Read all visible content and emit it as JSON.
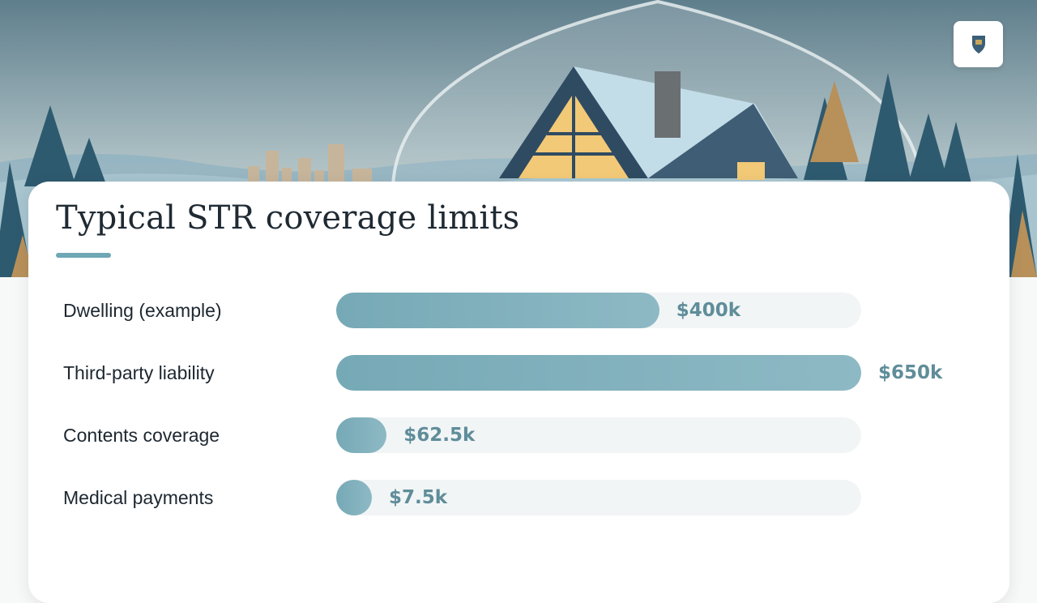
{
  "chart_data": {
    "type": "bar",
    "orientation": "horizontal",
    "title": "Typical STR coverage limits",
    "categories": [
      "Dwelling (example)",
      "Third-party liability",
      "Contents coverage",
      "Medical payments"
    ],
    "values": [
      400,
      650,
      62.5,
      7.5
    ],
    "value_labels": [
      "$400k",
      "$650k",
      "$62.5k",
      "$7.5k"
    ],
    "xlim": [
      0,
      650
    ],
    "grid": false,
    "legend": "none"
  },
  "colors": {
    "bar_fill_start": "#76a9b6",
    "bar_fill_end": "#8db9c4",
    "bar_track": "#f1f5f6",
    "value_text": "#5f8d99",
    "title_text": "#1f2a33",
    "accent": "#6fa7b5"
  },
  "hero": {
    "scene": "winter cabin under protective dome with city skyline and pine trees",
    "logo_icon": "crest-logo-icon"
  }
}
